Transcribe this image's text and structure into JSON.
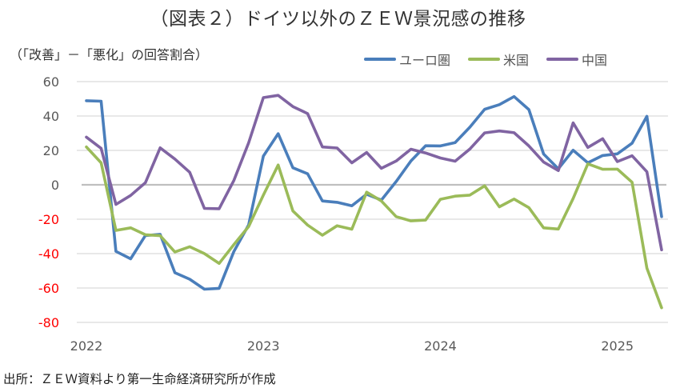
{
  "chart_data": {
    "type": "line",
    "title": "（図表２）ドイツ以外のＺＥＷ景況感の推移",
    "ylabel": "（「改善」－「悪化」の回答割合）",
    "xlabel": "",
    "ylim": [
      -80,
      60
    ],
    "yticks": [
      60,
      40,
      20,
      0,
      -20,
      -40,
      -60,
      -80
    ],
    "ytick_labels": [
      "60",
      "40",
      "20",
      "0",
      "-20",
      "-40",
      "-60",
      "-80"
    ],
    "xtick_labels": [
      {
        "label": "2022",
        "month_index": 0
      },
      {
        "label": "2023",
        "month_index": 12
      },
      {
        "label": "2024",
        "month_index": 24
      },
      {
        "label": "2025",
        "month_index": 36
      }
    ],
    "x_start": "2022-01",
    "x_frequency": "monthly",
    "n_points": 40,
    "grid": true,
    "legend_position": "top-right",
    "negative_tick_color": "#FF0000",
    "positive_tick_color": "#595959",
    "series": [
      {
        "name": "ユーロ圏",
        "color": "#4A7EBB",
        "values": [
          48.9,
          48.6,
          -38.7,
          -43.0,
          -29.5,
          -28.8,
          -51.1,
          -54.9,
          -60.7,
          -60.2,
          -38.7,
          -23.3,
          16.7,
          29.7,
          9.9,
          6.4,
          -9.4,
          -10.2,
          -12.2,
          -5.5,
          -8.9,
          1.9,
          13.8,
          22.7,
          22.6,
          24.5,
          33.5,
          43.9,
          46.6,
          51.3,
          43.7,
          17.9,
          9.3,
          20.1,
          12.8,
          17.0,
          18.0,
          24.2,
          39.8,
          -18.5
        ]
      },
      {
        "name": "米国",
        "color": "#9BBB59",
        "values": [
          22.0,
          12.8,
          -26.5,
          -25.0,
          -29.0,
          -29.6,
          -39.0,
          -36.0,
          -40.0,
          -45.7,
          -34.7,
          -24.3,
          -6.0,
          11.5,
          -15.2,
          -23.4,
          -29.3,
          -23.8,
          -25.8,
          -4.3,
          -9.4,
          -18.5,
          -21.0,
          -20.5,
          -8.4,
          -6.6,
          -6.0,
          -0.6,
          -12.8,
          -8.3,
          -13.3,
          -25.0,
          -25.7,
          -8.0,
          12.2,
          9.0,
          9.1,
          1.5,
          -48.4,
          -71.5
        ]
      },
      {
        "name": "中国",
        "color": "#8064A2",
        "values": [
          27.7,
          21.2,
          -11.4,
          -6.2,
          1.2,
          21.5,
          15.0,
          7.3,
          -13.7,
          -13.9,
          2.6,
          24.4,
          50.7,
          52.0,
          45.5,
          41.4,
          22.0,
          21.4,
          12.8,
          18.8,
          9.6,
          13.8,
          20.7,
          18.5,
          15.6,
          13.7,
          20.8,
          30.2,
          31.3,
          30.3,
          22.6,
          13.2,
          8.3,
          36.0,
          21.7,
          26.8,
          13.5,
          16.9,
          7.6,
          -37.8
        ]
      }
    ]
  },
  "page": {
    "title": "（図表２）ドイツ以外のＺＥＷ景況感の推移",
    "unit_label": "（「改善」－「悪化」の回答割合）",
    "source": "出所：ＺＥＷ資料より第一生命経済研究所が作成"
  }
}
